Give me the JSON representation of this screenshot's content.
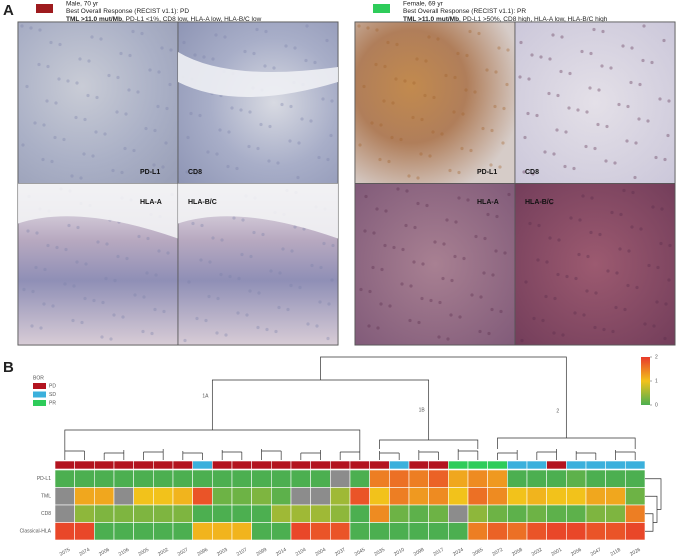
{
  "panel_a": {
    "label": "A",
    "cases": [
      {
        "swatch_color": "#9e1b1e",
        "lines": [
          "Male, 70 yr",
          "Best Overall Response (RECIST v1.1): PD"
        ],
        "tml": "TML >11.0 mut/Mb",
        "markers": ", PD-L1 <1%, CD8 low, HLA-A low, HLA-B/C low",
        "stains": [
          "PD-L1",
          "CD8",
          "HLA-A",
          "HLA-B/C"
        ]
      },
      {
        "swatch_color": "#2ecc5a",
        "lines": [
          "Female, 69 yr",
          "Best Overall Response (RECIST v1.1): PR"
        ],
        "tml": "TML >11.0 mut/Mb",
        "markers": ", PD-L1 >50%, CD8 high, HLA-A low, HLA-B/C high",
        "stains": [
          "PD-L1",
          "CD8",
          "HLA-A",
          "HLA-B/C"
        ]
      }
    ]
  },
  "panel_b": {
    "label": "B",
    "type": "heatmap",
    "legend_title": "BOR",
    "bor_legend": [
      {
        "name": "PD",
        "color": "#b3131f"
      },
      {
        "name": "SD",
        "color": "#3bb0dc"
      },
      {
        "name": "PR",
        "color": "#2ecc5a"
      }
    ],
    "scale_colors": [
      "#4caf50",
      "#f2c21b",
      "#e8392b"
    ],
    "missing_color": "#8c8c8c",
    "scale_lim": [
      0,
      2
    ],
    "scale_ticks": [
      0,
      1,
      2
    ],
    "clusters": [
      {
        "label": "1A",
        "start": 0,
        "end": 15
      },
      {
        "label": "1B",
        "start": 16,
        "end": 21
      },
      {
        "label": "2",
        "start": 22,
        "end": 29
      }
    ],
    "samples": [
      "2075",
      "2074",
      "2006",
      "2106",
      "2005",
      "2002",
      "2027",
      "2096",
      "2003",
      "2107",
      "2099",
      "2014",
      "2104",
      "2004",
      "2037",
      "2045",
      "2035",
      "2010",
      "2098",
      "2017",
      "2024",
      "2065",
      "2072",
      "2058",
      "2032",
      "2001",
      "2056",
      "2047",
      "2118",
      "2026"
    ],
    "bor": [
      "PD",
      "PD",
      "PD",
      "PD",
      "PD",
      "PD",
      "PD",
      "SD",
      "PD",
      "PD",
      "PD",
      "PD",
      "PD",
      "PD",
      "PD",
      "PD",
      "PD",
      "SD",
      "PD",
      "PD",
      "PR",
      "PR",
      "PR",
      "SD",
      "SD",
      "PD",
      "SD",
      "SD",
      "SD",
      "SD"
    ],
    "rows": [
      {
        "name": "PD-L1",
        "values": [
          0,
          0,
          0,
          0,
          0,
          0,
          0,
          0,
          0,
          0,
          0,
          0,
          0,
          0,
          null,
          0,
          1.5,
          1.6,
          1.5,
          1.7,
          1.2,
          1.4,
          1.3,
          0,
          0,
          0,
          0.1,
          0,
          0,
          0
        ]
      },
      {
        "name": "TML",
        "values": [
          null,
          1.2,
          1.2,
          null,
          1,
          1,
          1.1,
          1.8,
          0.2,
          0.2,
          0.3,
          0.1,
          null,
          null,
          0.5,
          1.8,
          1,
          1.5,
          1.3,
          1.4,
          1,
          1.6,
          1.4,
          1,
          1.1,
          1,
          1,
          1.2,
          1.2,
          0.2
        ]
      },
      {
        "name": "CD8",
        "values": [
          null,
          0.4,
          0.3,
          0.3,
          0.3,
          0.3,
          0.3,
          0,
          0,
          0,
          0,
          0.5,
          0.5,
          0.5,
          0.4,
          0,
          1.4,
          0.2,
          0.1,
          0.2,
          null,
          0.4,
          0.2,
          0.1,
          0.2,
          0.1,
          0.1,
          0.3,
          0.3,
          1.5
        ]
      },
      {
        "name": "Classical-HLA",
        "values": [
          1.9,
          1.9,
          0,
          0,
          0,
          0,
          0,
          1.1,
          1.1,
          1.1,
          0,
          0,
          1.9,
          1.8,
          1.8,
          0,
          0,
          0,
          0,
          0,
          0,
          1.5,
          1.7,
          1.6,
          1.8,
          1.9,
          1.9,
          1.8,
          1.8,
          1.9
        ]
      }
    ]
  }
}
